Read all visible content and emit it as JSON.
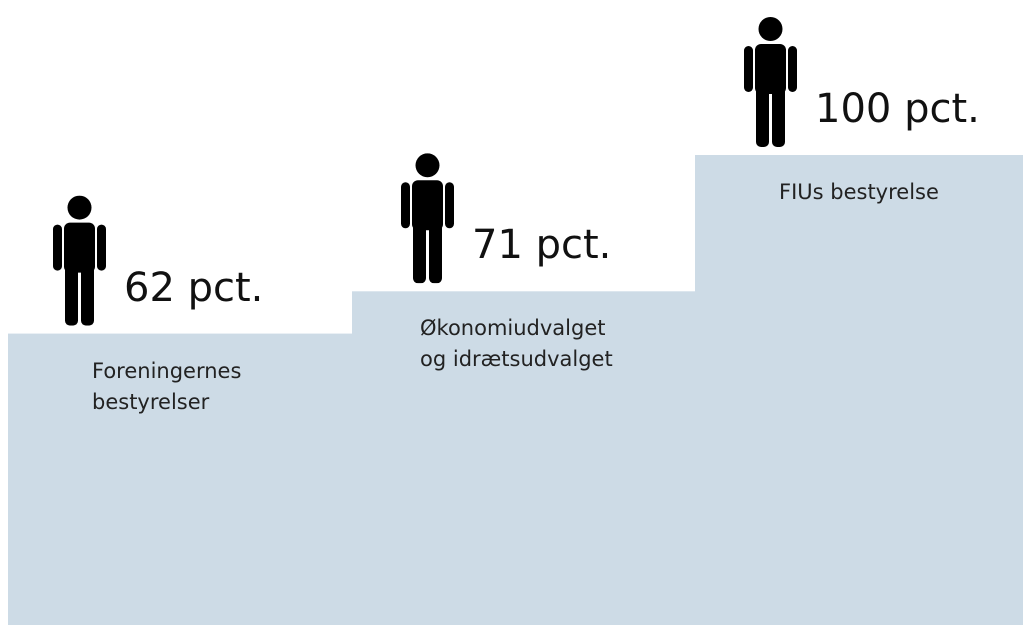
{
  "chart_data": {
    "type": "bar",
    "categories": [
      "Foreningernes\nbestyrelser",
      "Økonomiudvalget\nog idrætsudvalget",
      "FIUs bestyrelse"
    ],
    "values": [
      62,
      71,
      100
    ],
    "value_labels": [
      "62 pct.",
      "71 pct.",
      "100 pct."
    ],
    "color": "#cddbe6"
  }
}
